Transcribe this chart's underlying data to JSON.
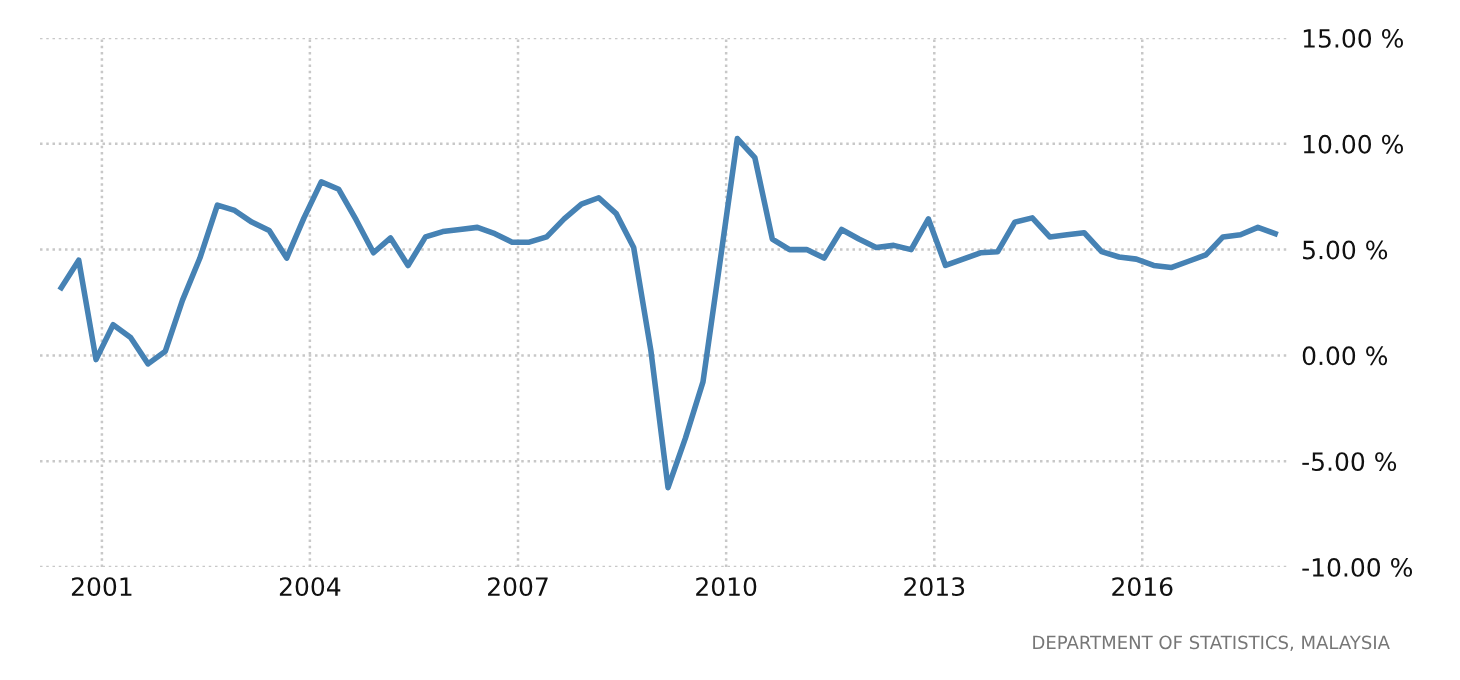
{
  "chart_data": {
    "type": "line",
    "x": [
      "2000-06",
      "2000-09",
      "2000-12",
      "2001-03",
      "2001-06",
      "2001-09",
      "2001-12",
      "2002-03",
      "2002-06",
      "2002-09",
      "2002-12",
      "2003-03",
      "2003-06",
      "2003-09",
      "2003-12",
      "2004-03",
      "2004-06",
      "2004-09",
      "2004-12",
      "2005-03",
      "2005-06",
      "2005-09",
      "2005-12",
      "2006-03",
      "2006-06",
      "2006-09",
      "2006-12",
      "2007-03",
      "2007-06",
      "2007-09",
      "2007-12",
      "2008-03",
      "2008-06",
      "2008-09",
      "2008-12",
      "2009-03",
      "2009-06",
      "2009-09",
      "2009-12",
      "2010-03",
      "2010-06",
      "2010-09",
      "2010-12",
      "2011-03",
      "2011-06",
      "2011-09",
      "2011-12",
      "2012-03",
      "2012-06",
      "2012-09",
      "2012-12",
      "2013-03",
      "2013-06",
      "2013-09",
      "2013-12",
      "2014-03",
      "2014-06",
      "2014-09",
      "2014-12",
      "2015-03",
      "2015-06",
      "2015-09",
      "2015-12",
      "2016-03",
      "2016-06",
      "2016-09",
      "2016-12",
      "2017-03",
      "2017-06",
      "2017-09",
      "2017-12"
    ],
    "series": [
      {
        "color": "#4682b4",
        "values": [
          3.2,
          4.5,
          -0.2,
          1.45,
          0.85,
          -0.4,
          0.2,
          2.6,
          4.6,
          7.1,
          6.85,
          6.3,
          5.9,
          4.6,
          6.5,
          8.2,
          7.85,
          6.4,
          4.85,
          5.55,
          4.25,
          5.6,
          5.85,
          5.95,
          6.05,
          5.75,
          5.35,
          5.35,
          5.6,
          6.45,
          7.15,
          7.45,
          6.7,
          5.1,
          0.2,
          -6.25,
          -3.9,
          -1.25,
          4.5,
          10.25,
          9.35,
          5.5,
          5.0,
          5.0,
          4.6,
          5.95,
          5.5,
          5.1,
          5.2,
          5.0,
          6.45,
          4.25,
          4.55,
          4.85,
          4.9,
          6.3,
          6.5,
          5.6,
          5.7,
          5.8,
          4.9,
          4.65,
          4.55,
          4.25,
          4.15,
          4.45,
          4.75,
          5.6,
          5.7,
          6.05,
          5.75
        ]
      }
    ],
    "xlim": [
      "2000-02-10",
      "2018-02-17"
    ],
    "xticks": [
      "2001",
      "2004",
      "2007",
      "2010",
      "2013",
      "2016"
    ],
    "ylim": [
      -10,
      15
    ],
    "yticks": [
      {
        "value": -10,
        "label": "-10.00 %"
      },
      {
        "value": -5,
        "label": "-5.00 %"
      },
      {
        "value": 0,
        "label": "0.00 %"
      },
      {
        "value": 5,
        "label": "5.00 %"
      },
      {
        "value": 10,
        "label": "10.00 %"
      },
      {
        "value": 15,
        "label": "15.00 %"
      }
    ],
    "grid": true,
    "line_style": "solid",
    "marker": "none",
    "annotations": [
      "DEPARTMENT OF STATISTICS, MALAYSIA"
    ]
  }
}
